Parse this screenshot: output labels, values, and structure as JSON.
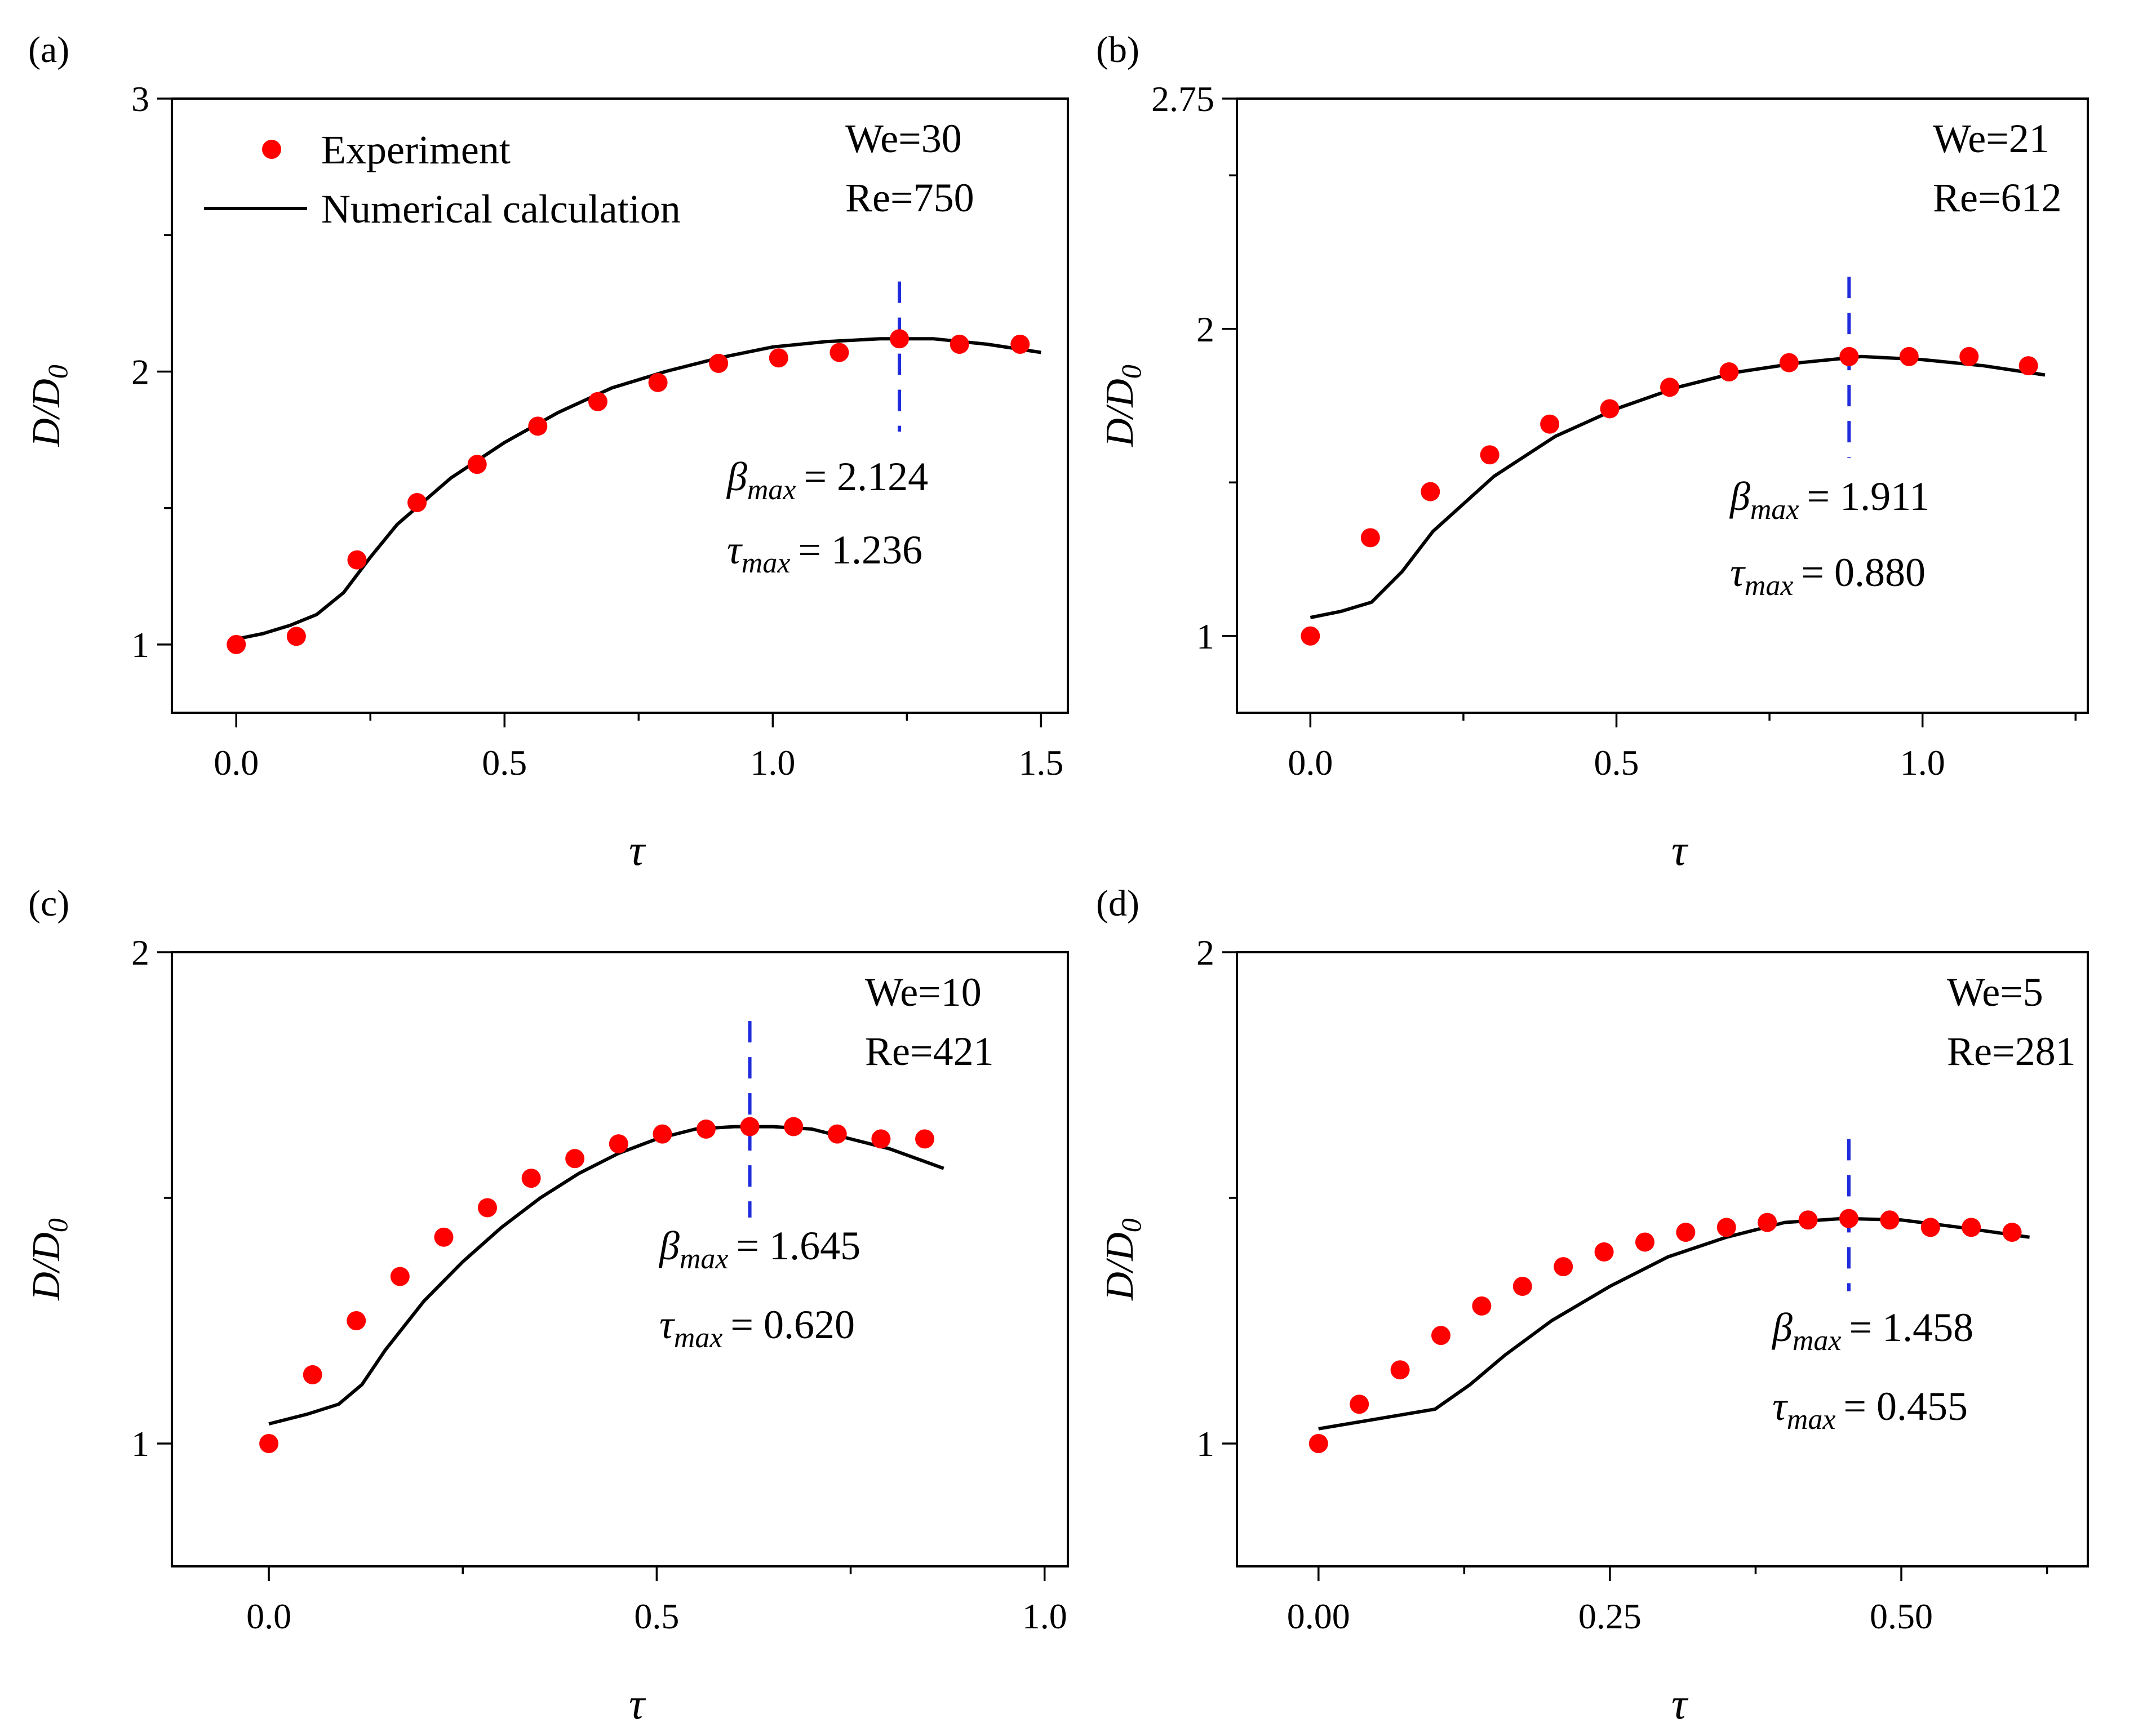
{
  "chart_data": [
    {
      "panel_label": "(a)",
      "type": "scatter",
      "xlabel": "τ",
      "ylabel_main": "D/D",
      "ylabel_sub": "0",
      "xlim": [
        -0.12,
        1.55
      ],
      "ylim": [
        0.75,
        3.0
      ],
      "xticks": [
        0.0,
        0.5,
        1.0,
        1.5
      ],
      "xtick_labels": [
        "0.0",
        "0.5",
        "1.0",
        "1.5"
      ],
      "yticks": [
        1,
        2,
        3
      ],
      "ytick_labels": [
        "1",
        "2",
        "3"
      ],
      "yminor": [
        1.5,
        2.5
      ],
      "params": [
        "We=30",
        "Re=750"
      ],
      "beta_value": "= 2.124",
      "tau_value": "= 1.236",
      "vline_x": 1.236,
      "vline_y": [
        1.78,
        2.33
      ],
      "legend": {
        "experiment": "Experiment",
        "numerical": "Numerical calculation"
      },
      "series": [
        {
          "name": "Experiment",
          "x": [
            0.0,
            0.112,
            0.225,
            0.337,
            0.449,
            0.562,
            0.674,
            0.786,
            0.899,
            1.011,
            1.124,
            1.236,
            1.348,
            1.461
          ],
          "y": [
            1.0,
            1.03,
            1.31,
            1.52,
            1.66,
            1.8,
            1.89,
            1.96,
            2.03,
            2.05,
            2.07,
            2.12,
            2.1,
            2.1
          ]
        },
        {
          "name": "Numerical calculation",
          "x": [
            0.0,
            0.05,
            0.1,
            0.15,
            0.2,
            0.25,
            0.3,
            0.4,
            0.5,
            0.6,
            0.7,
            0.8,
            0.9,
            1.0,
            1.1,
            1.2,
            1.3,
            1.4,
            1.5
          ],
          "y": [
            1.02,
            1.04,
            1.07,
            1.11,
            1.19,
            1.32,
            1.44,
            1.61,
            1.74,
            1.85,
            1.94,
            2.0,
            2.05,
            2.09,
            2.11,
            2.12,
            2.12,
            2.1,
            2.07
          ]
        }
      ]
    },
    {
      "panel_label": "(b)",
      "type": "scatter",
      "xlabel": "τ",
      "ylabel_main": "D/D",
      "ylabel_sub": "0",
      "xlim": [
        -0.12,
        1.27
      ],
      "ylim": [
        0.75,
        2.75
      ],
      "xticks": [
        0.0,
        0.5,
        1.0
      ],
      "xtick_labels": [
        "0.0",
        "0.5",
        "1.0"
      ],
      "yticks": [
        1,
        2,
        2.75
      ],
      "ytick_labels": [
        "1",
        "2",
        "2.75"
      ],
      "yminor": [
        1.5,
        2.5
      ],
      "params": [
        "We=21",
        "Re=612"
      ],
      "beta_value": "= 1.911",
      "tau_value": "= 0.880",
      "vline_x": 0.88,
      "vline_y": [
        1.58,
        2.17
      ],
      "series": [
        {
          "name": "Experiment",
          "x": [
            0.0,
            0.098,
            0.196,
            0.293,
            0.391,
            0.489,
            0.587,
            0.684,
            0.782,
            0.88,
            0.978,
            1.076,
            1.173
          ],
          "y": [
            1.0,
            1.32,
            1.47,
            1.59,
            1.69,
            1.74,
            1.81,
            1.86,
            1.89,
            1.91,
            1.91,
            1.91,
            1.88
          ]
        },
        {
          "name": "Numerical calculation",
          "x": [
            0.0,
            0.05,
            0.1,
            0.15,
            0.2,
            0.3,
            0.4,
            0.5,
            0.6,
            0.7,
            0.8,
            0.9,
            1.0,
            1.1,
            1.2
          ],
          "y": [
            1.06,
            1.08,
            1.11,
            1.21,
            1.34,
            1.52,
            1.65,
            1.74,
            1.81,
            1.86,
            1.89,
            1.91,
            1.9,
            1.88,
            1.85
          ]
        }
      ]
    },
    {
      "panel_label": "(c)",
      "type": "scatter",
      "xlabel": "τ",
      "ylabel_main": "D/D",
      "ylabel_sub": "0",
      "xlim": [
        -0.125,
        1.03
      ],
      "ylim": [
        0.75,
        2.0
      ],
      "xticks": [
        0.0,
        0.5,
        1.0
      ],
      "xtick_labels": [
        "0.0",
        "0.5",
        "1.0"
      ],
      "yticks": [
        1,
        2
      ],
      "ytick_labels": [
        "1",
        "2"
      ],
      "yminor": [
        1.5
      ],
      "params": [
        "We=10",
        "Re=421"
      ],
      "beta_value": "= 1.645",
      "tau_value": "= 0.620",
      "vline_x": 0.62,
      "vline_y": [
        1.46,
        1.86
      ],
      "series": [
        {
          "name": "Experiment",
          "x": [
            0.0,
            0.0564,
            0.1127,
            0.1691,
            0.2255,
            0.2818,
            0.3382,
            0.3945,
            0.4509,
            0.5073,
            0.5636,
            0.62,
            0.6764,
            0.7327,
            0.7891,
            0.8455
          ],
          "y": [
            1.0,
            1.14,
            1.25,
            1.34,
            1.42,
            1.48,
            1.54,
            1.58,
            1.61,
            1.63,
            1.64,
            1.645,
            1.645,
            1.63,
            1.62,
            1.62
          ]
        },
        {
          "name": "Numerical calculation",
          "x": [
            0.0,
            0.05,
            0.09,
            0.12,
            0.15,
            0.2,
            0.25,
            0.3,
            0.35,
            0.4,
            0.45,
            0.5,
            0.55,
            0.6,
            0.65,
            0.7,
            0.75,
            0.8,
            0.87
          ],
          "y": [
            1.04,
            1.06,
            1.08,
            1.12,
            1.19,
            1.29,
            1.37,
            1.44,
            1.5,
            1.55,
            1.59,
            1.62,
            1.64,
            1.645,
            1.645,
            1.64,
            1.62,
            1.6,
            1.56
          ]
        }
      ]
    },
    {
      "panel_label": "(d)",
      "type": "scatter",
      "xlabel": "τ",
      "ylabel_main": "D/D",
      "ylabel_sub": "0",
      "xlim": [
        -0.07,
        0.66
      ],
      "ylim": [
        0.75,
        2.0
      ],
      "xticks": [
        0.0,
        0.25,
        0.5
      ],
      "xtick_labels": [
        "0.00",
        "0.25",
        "0.50"
      ],
      "yticks": [
        1,
        2
      ],
      "ytick_labels": [
        "1",
        "2"
      ],
      "yminor": [
        1.5
      ],
      "params": [
        "We=5",
        "Re=281"
      ],
      "beta_value": "= 1.458",
      "tau_value": "= 0.455",
      "vline_x": 0.455,
      "vline_y": [
        1.31,
        1.62
      ],
      "series": [
        {
          "name": "Experiment",
          "x": [
            0.0,
            0.035,
            0.07,
            0.105,
            0.14,
            0.175,
            0.21,
            0.245,
            0.28,
            0.315,
            0.35,
            0.385,
            0.42,
            0.455,
            0.49,
            0.525,
            0.56,
            0.595
          ],
          "y": [
            1.0,
            1.08,
            1.15,
            1.22,
            1.28,
            1.32,
            1.36,
            1.39,
            1.41,
            1.43,
            1.44,
            1.45,
            1.455,
            1.458,
            1.455,
            1.44,
            1.44,
            1.43
          ]
        },
        {
          "name": "Numerical calculation",
          "x": [
            0.0,
            0.05,
            0.1,
            0.13,
            0.16,
            0.2,
            0.25,
            0.3,
            0.35,
            0.4,
            0.45,
            0.5,
            0.55,
            0.61
          ],
          "y": [
            1.03,
            1.05,
            1.07,
            1.12,
            1.18,
            1.25,
            1.32,
            1.38,
            1.42,
            1.45,
            1.458,
            1.455,
            1.44,
            1.42
          ]
        }
      ]
    }
  ],
  "colors": {
    "experiment": "#ff0000",
    "numerical": "#000000",
    "vline": "#1f2bdc",
    "axis": "#000000"
  },
  "annotation_symbols": {
    "beta": "β",
    "tau": "τ",
    "sub": "max"
  }
}
